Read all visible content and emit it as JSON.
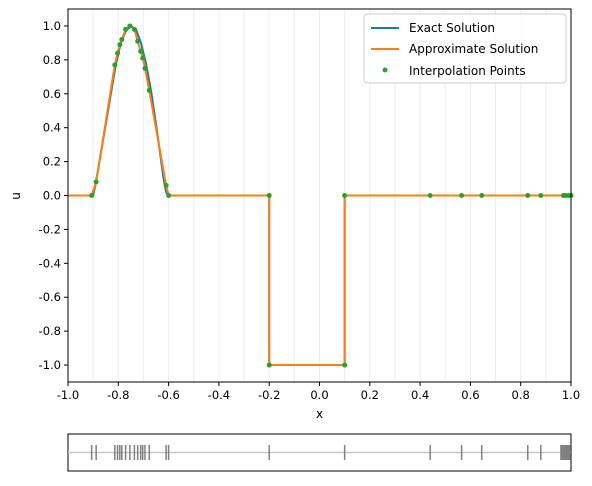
{
  "chart_data": [
    {
      "type": "line",
      "xlabel": "x",
      "ylabel": "u",
      "xlim": [
        -1.0,
        1.0
      ],
      "ylim": [
        -1.1,
        1.1
      ],
      "grid": "vertical faint lines at interpolation spacing",
      "legend_position": "top-right",
      "x_ticks": [
        "-1.0",
        "-0.8",
        "-0.6",
        "-0.4",
        "-0.2",
        "0.0",
        "0.2",
        "0.4",
        "0.6",
        "0.8",
        "1.0"
      ],
      "y_ticks": [
        "-1.0",
        "-0.8",
        "-0.6",
        "-0.4",
        "-0.2",
        "0.0",
        "0.2",
        "0.4",
        "0.6",
        "0.8",
        "1.0"
      ],
      "series": [
        {
          "name": "Exact Solution",
          "color": "#1f77b4",
          "x": [
            -1.0,
            -0.9,
            -0.89,
            -0.85,
            -0.81,
            -0.79,
            -0.77,
            -0.75,
            -0.73,
            -0.71,
            -0.69,
            -0.67,
            -0.65,
            -0.62,
            -0.61,
            -0.6,
            -0.2,
            -0.2,
            0.1,
            0.1,
            1.0
          ],
          "y": [
            0,
            0,
            0.07,
            0.42,
            0.77,
            0.9,
            0.97,
            1.0,
            0.98,
            0.9,
            0.78,
            0.62,
            0.42,
            0.1,
            0.02,
            0,
            0,
            -1,
            -1,
            0,
            0
          ]
        },
        {
          "name": "Approximate Solution",
          "color": "#ff7f0e",
          "x": [
            -1.0,
            -0.906,
            -0.888,
            -0.814,
            -0.803,
            -0.794,
            -0.786,
            -0.771,
            -0.754,
            -0.736,
            -0.723,
            -0.711,
            -0.703,
            -0.694,
            -0.677,
            -0.61,
            -0.6,
            -0.2,
            -0.2,
            0.1,
            0.1,
            1.0
          ],
          "y": [
            0,
            0,
            0.08,
            0.77,
            0.84,
            0.89,
            0.92,
            0.98,
            1.0,
            0.98,
            0.91,
            0.85,
            0.81,
            0.75,
            0.62,
            0.06,
            0,
            0,
            -1,
            -1,
            0,
            0
          ]
        },
        {
          "name": "Interpolation Points",
          "color": "#2ca02c",
          "marker": "dot",
          "x": [
            -0.906,
            -0.888,
            -0.814,
            -0.803,
            -0.794,
            -0.786,
            -0.771,
            -0.754,
            -0.736,
            -0.723,
            -0.711,
            -0.703,
            -0.694,
            -0.677,
            -0.61,
            -0.6,
            -0.2,
            -0.2,
            0.1,
            0.1,
            0.44,
            0.565,
            0.645,
            0.828,
            0.88,
            0.97,
            0.98,
            0.99,
            1.0
          ],
          "y": [
            0,
            0.08,
            0.77,
            0.84,
            0.89,
            0.92,
            0.98,
            1.0,
            0.98,
            0.91,
            0.85,
            0.81,
            0.75,
            0.62,
            0.06,
            0,
            0,
            -1,
            -1,
            0,
            0,
            0,
            0,
            0,
            0,
            0,
            0,
            0,
            0
          ]
        }
      ]
    },
    {
      "type": "scatter",
      "description_of_marks": "rug plot of interpolation point x-positions",
      "xlim": [
        -1.0,
        1.0
      ],
      "tick_color": "#808080",
      "baseline_color": "#c8c8c8",
      "x": [
        -0.906,
        -0.888,
        -0.814,
        -0.803,
        -0.794,
        -0.786,
        -0.771,
        -0.754,
        -0.736,
        -0.723,
        -0.711,
        -0.703,
        -0.694,
        -0.677,
        -0.61,
        -0.6,
        -0.2,
        0.1,
        0.44,
        0.565,
        0.645,
        0.828,
        0.88,
        0.96,
        0.965,
        0.97,
        0.975,
        0.98,
        0.985,
        0.99,
        0.995,
        1.0
      ]
    }
  ]
}
